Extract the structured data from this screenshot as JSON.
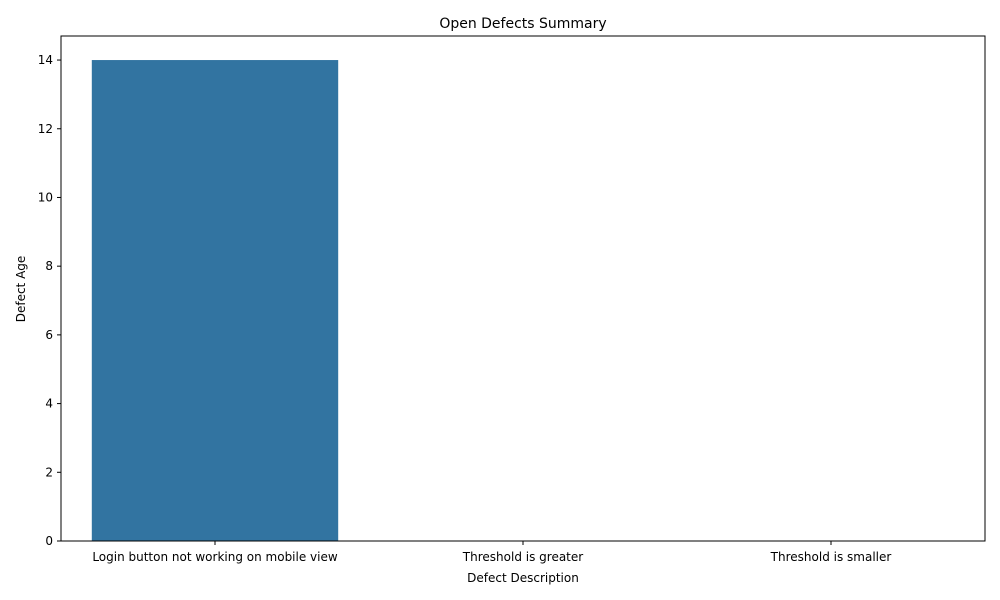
{
  "chart_data": {
    "type": "bar",
    "title": "Open Defects Summary",
    "xlabel": "Defect Description",
    "ylabel": "Defect Age",
    "categories": [
      "Login button not working on mobile view",
      "Threshold is greater",
      "Threshold is smaller"
    ],
    "values": [
      14,
      0,
      0
    ],
    "ylim": [
      0,
      14.7
    ],
    "yticks": [
      0,
      2,
      4,
      6,
      8,
      10,
      12,
      14
    ],
    "bar_color": "#3274a1",
    "grid": false,
    "legend": "none"
  }
}
